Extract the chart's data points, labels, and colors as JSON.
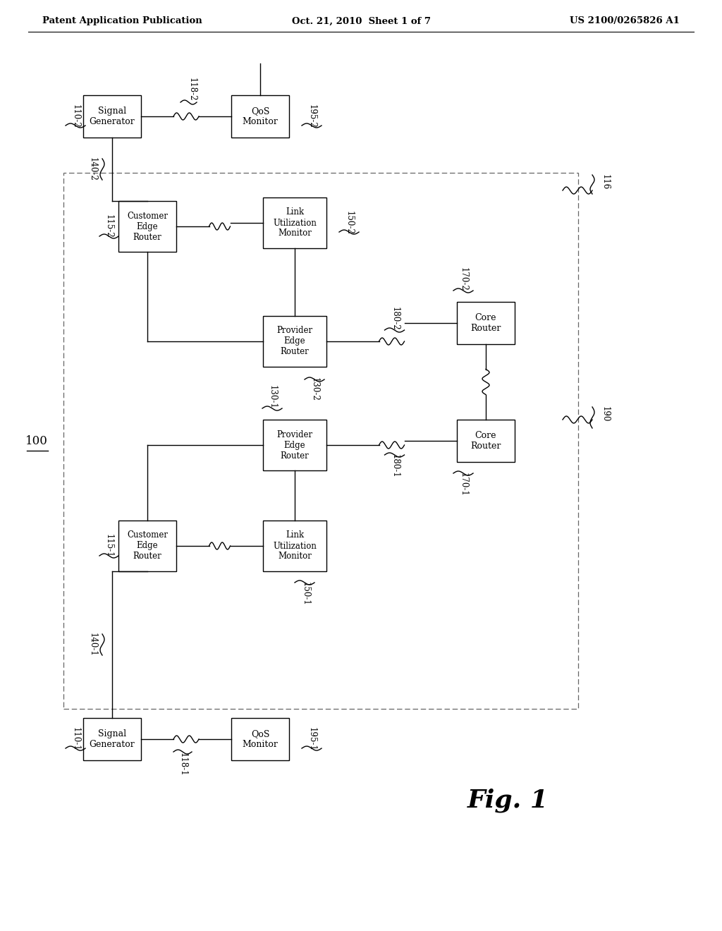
{
  "header_left": "Patent Application Publication",
  "header_center": "Oct. 21, 2010  Sheet 1 of 7",
  "header_right": "US 2100/0265826 A1",
  "fig_label": "Fig. 1",
  "bg_color": "#ffffff"
}
